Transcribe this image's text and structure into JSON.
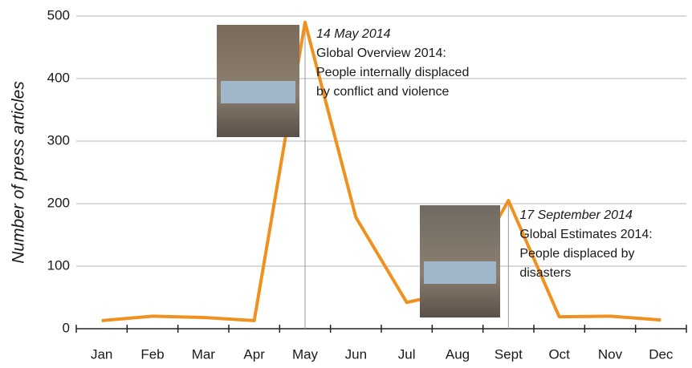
{
  "chart_data": {
    "type": "line",
    "y_label": "Number of press articles",
    "categories": [
      "Jan",
      "Feb",
      "Mar",
      "Apr",
      "May",
      "Jun",
      "Jul",
      "Aug",
      "Sept",
      "Oct",
      "Nov",
      "Dec"
    ],
    "series": [
      {
        "name": "Press articles",
        "color": "#f0901e",
        "values": [
          13,
          20,
          18,
          13,
          490,
          178,
          42,
          60,
          205,
          19,
          20,
          14
        ]
      }
    ],
    "ylim": [
      0,
      500
    ],
    "yticks": [
      0,
      100,
      200,
      300,
      400,
      500
    ],
    "grid": true,
    "annotations": [
      {
        "date": "14 May 2014",
        "lines": [
          "Global Overview 2014:",
          "People internally displaced",
          "by conflict and violence"
        ]
      },
      {
        "date": "17 September 2014",
        "lines": [
          "Global Estimates 2014:",
          "People displaced by",
          "disasters"
        ]
      }
    ]
  }
}
